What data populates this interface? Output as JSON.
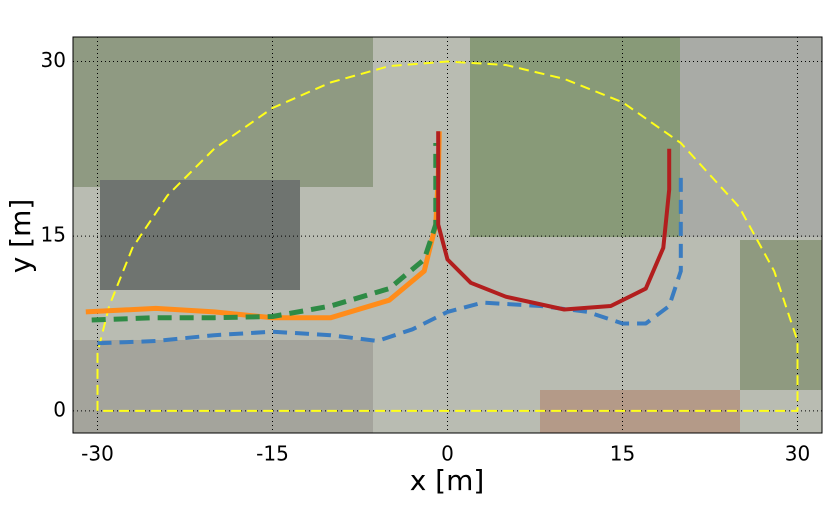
{
  "chart_data": {
    "type": "line",
    "x_label": "x [m]",
    "y_label": "y [m]",
    "xlim": [
      -32.1,
      32.1
    ],
    "ylim": [
      -1.9,
      32.1
    ],
    "xticks": [
      -30,
      -15,
      0,
      15,
      30
    ],
    "yticks": [
      0,
      15,
      30
    ],
    "grid": true,
    "series": [
      {
        "color": "#ffff1a",
        "dash": true,
        "width": 2,
        "x": [
          -30,
          -30,
          -29,
          -27,
          -24,
          -20,
          -15,
          -10,
          -5,
          0,
          5,
          10,
          15,
          20,
          25,
          28,
          30,
          30,
          -30
        ],
        "values": [
          0,
          5,
          9,
          14,
          18.5,
          22.5,
          26,
          28.2,
          29.6,
          30,
          29.7,
          28.5,
          26.5,
          23,
          17.5,
          12,
          6,
          0,
          0
        ]
      },
      {
        "color": "#3a7cc0",
        "dash": true,
        "width": 4,
        "x": [
          -30,
          -25,
          -20,
          -15,
          -10,
          -6,
          -3,
          0,
          3,
          8,
          12,
          15,
          17,
          19,
          20,
          20,
          20
        ],
        "values": [
          5.8,
          6,
          6.5,
          6.8,
          6.5,
          6,
          7,
          8.5,
          9.3,
          9,
          8.5,
          7.5,
          7.5,
          9,
          12,
          16,
          20
        ]
      },
      {
        "color": "#ff8c1a",
        "dash": false,
        "width": 5,
        "x": [
          -31,
          -25,
          -20,
          -15,
          -10,
          -5,
          -2,
          -1,
          -0.8,
          -0.7
        ],
        "values": [
          8.5,
          8.8,
          8.5,
          8,
          8,
          9.5,
          12,
          16,
          20,
          24
        ]
      },
      {
        "color": "#2e8b45",
        "dash": true,
        "width": 5,
        "x": [
          -30.5,
          -25,
          -20,
          -15,
          -10,
          -5,
          -2,
          -1,
          -1,
          -1
        ],
        "values": [
          7.8,
          8,
          8,
          8.1,
          9,
          10.5,
          13,
          16,
          20,
          23
        ]
      },
      {
        "color": "#b21e1e",
        "dash": false,
        "width": 4,
        "x": [
          -0.8,
          -0.8,
          0,
          2,
          5,
          10,
          14,
          17,
          18.5,
          19,
          19
        ],
        "values": [
          24,
          16,
          13,
          11,
          9.8,
          8.7,
          9,
          10.5,
          14,
          19,
          22.5
        ]
      }
    ]
  }
}
